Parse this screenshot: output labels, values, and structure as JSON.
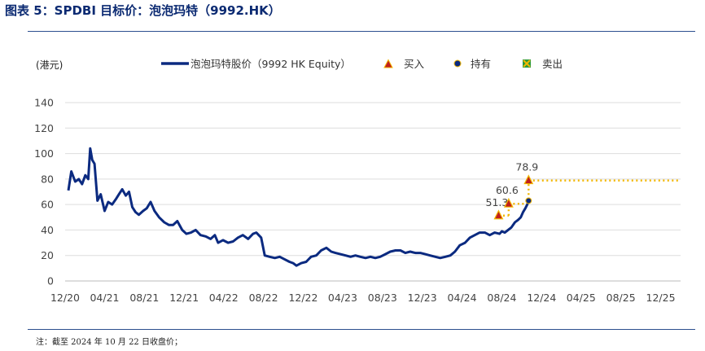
{
  "figure_title": "图表 5：SPDBI 目标价：泡泡玛特（9992.HK）",
  "footnote": "注：截至 2024 年 10 月 22 日收盘价；",
  "colors": {
    "title": "#0b2a72",
    "price_line": "#0b2a80",
    "buy_marker": "#c01f1f",
    "buy_marker_edge": "#f2b700",
    "hold_marker": "#0b2a80",
    "target_line": "#f2b700",
    "axis_text": "#444444",
    "grid": "#dddddd"
  },
  "chart_data": {
    "type": "line",
    "ylabel": "(港元)",
    "ylim": [
      0,
      140
    ],
    "yticks": [
      0,
      20,
      40,
      60,
      80,
      100,
      120,
      140
    ],
    "x_ticks": [
      "12/20",
      "04/21",
      "08/21",
      "12/21",
      "04/22",
      "08/22",
      "12/22",
      "04/23",
      "08/23",
      "12/23",
      "04/24",
      "08/24",
      "12/24",
      "04/25",
      "08/25",
      "12/25"
    ],
    "x_tick_values": [
      "2020-12",
      "2021-04",
      "2021-08",
      "2021-12",
      "2022-04",
      "2022-08",
      "2022-12",
      "2023-04",
      "2023-08",
      "2023-12",
      "2024-04",
      "2024-08",
      "2024-12",
      "2025-04",
      "2025-08",
      "2025-12"
    ],
    "legend": {
      "price_series": "泡泡玛特股价（9992 HK Equity）",
      "buy": "买入",
      "hold": "持有",
      "sell": "卖出"
    },
    "grid": true,
    "series": [
      {
        "name": "泡泡玛特股价（9992 HK Equity）",
        "x": [
          "2020-12-11",
          "2020-12-20",
          "2021-01-01",
          "2021-01-12",
          "2021-01-22",
          "2021-02-01",
          "2021-02-10",
          "2021-02-16",
          "2021-02-22",
          "2021-03-01",
          "2021-03-10",
          "2021-03-20",
          "2021-04-01",
          "2021-04-12",
          "2021-04-24",
          "2021-05-05",
          "2021-05-15",
          "2021-05-25",
          "2021-06-05",
          "2021-06-15",
          "2021-06-25",
          "2021-07-05",
          "2021-07-15",
          "2021-07-28",
          "2021-08-08",
          "2021-08-20",
          "2021-09-01",
          "2021-09-15",
          "2021-10-01",
          "2021-10-15",
          "2021-10-28",
          "2021-11-10",
          "2021-11-25",
          "2021-12-08",
          "2021-12-22",
          "2022-01-05",
          "2022-01-20",
          "2022-02-05",
          "2022-02-20",
          "2022-03-05",
          "2022-03-15",
          "2022-03-30",
          "2022-04-15",
          "2022-04-30",
          "2022-05-15",
          "2022-05-30",
          "2022-06-15",
          "2022-06-30",
          "2022-07-10",
          "2022-07-25",
          "2022-08-05",
          "2022-08-20",
          "2022-09-05",
          "2022-09-20",
          "2022-10-05",
          "2022-10-20",
          "2022-10-31",
          "2022-11-10",
          "2022-11-25",
          "2022-12-10",
          "2022-12-25",
          "2023-01-10",
          "2023-01-25",
          "2023-02-10",
          "2023-02-25",
          "2023-03-10",
          "2023-03-25",
          "2023-04-10",
          "2023-04-25",
          "2023-05-10",
          "2023-05-25",
          "2023-06-10",
          "2023-06-25",
          "2023-07-10",
          "2023-07-25",
          "2023-08-10",
          "2023-08-25",
          "2023-09-10",
          "2023-09-25",
          "2023-10-10",
          "2023-10-25",
          "2023-11-10",
          "2023-11-25",
          "2023-12-10",
          "2023-12-25",
          "2024-01-10",
          "2024-01-25",
          "2024-02-10",
          "2024-02-25",
          "2024-03-10",
          "2024-03-25",
          "2024-04-10",
          "2024-04-25",
          "2024-05-10",
          "2024-05-25",
          "2024-06-10",
          "2024-06-25",
          "2024-07-10",
          "2024-07-25",
          "2024-08-01",
          "2024-08-10",
          "2024-08-20",
          "2024-08-30",
          "2024-09-10",
          "2024-09-20",
          "2024-09-28",
          "2024-10-05",
          "2024-10-12",
          "2024-10-18",
          "2024-10-22"
        ],
        "values": [
          71,
          86,
          78,
          80,
          76,
          83,
          80,
          104,
          95,
          92,
          63,
          68,
          55,
          62,
          60,
          64,
          68,
          72,
          67,
          70,
          58,
          54,
          52,
          55,
          57,
          62,
          55,
          50,
          46,
          44,
          44,
          47,
          40,
          37,
          38,
          40,
          36,
          35,
          33,
          36,
          30,
          32,
          30,
          31,
          34,
          36,
          33,
          37,
          38,
          34,
          20,
          19,
          18,
          19,
          17,
          15,
          14,
          12,
          14,
          15,
          19,
          20,
          24,
          26,
          23,
          22,
          21,
          20,
          19,
          20,
          19,
          18,
          19,
          18,
          19,
          21,
          23,
          24,
          24,
          22,
          23,
          22,
          22,
          21,
          20,
          19,
          18,
          19,
          20,
          23,
          28,
          30,
          34,
          36,
          38,
          38,
          36,
          38,
          37,
          39,
          38,
          40,
          42,
          46,
          48,
          50,
          54,
          57,
          60,
          63
        ]
      }
    ],
    "markers": [
      {
        "type": "buy",
        "x": "2024-07-22",
        "value": 51.3,
        "label": "51.3"
      },
      {
        "type": "buy",
        "x": "2024-08-22",
        "value": 60.6,
        "label": "60.6"
      },
      {
        "type": "buy",
        "x": "2024-10-22",
        "value": 78.9,
        "label": "78.9"
      },
      {
        "type": "hold",
        "x": "2024-10-22",
        "value": 63
      }
    ],
    "target_steps": [
      {
        "x": [
          "2024-07-22",
          "2024-08-22"
        ],
        "value": 51.3
      },
      {
        "x": [
          "2024-08-22",
          "2024-10-22"
        ],
        "value": 60.6
      },
      {
        "x": [
          "2024-10-22",
          "2026-01-31"
        ],
        "value": 78.9
      }
    ]
  }
}
